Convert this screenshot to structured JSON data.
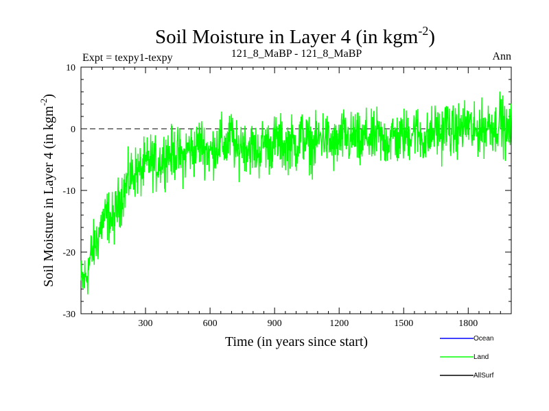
{
  "chart_data": {
    "type": "line",
    "title": "Soil Moisture in Layer 4 (in kgm",
    "title_sup": "-2",
    "title_close": ")",
    "subtitle_left": "Expt = texpy1-texpy",
    "subtitle_center": "121_8_MaBP - 121_8_MaBP",
    "subtitle_right": "Ann",
    "xlabel": "Time (in years since start)",
    "ylabel": "Soil Moisture in Layer 4 (in kgm",
    "ylabel_sup": "-2",
    "ylabel_close": ")",
    "xlim": [
      0,
      2000
    ],
    "ylim": [
      -30,
      10
    ],
    "x_ticks": [
      300,
      600,
      900,
      1200,
      1500,
      1800
    ],
    "x_tick_labels": [
      "300",
      "600",
      "900",
      "1200",
      "1500",
      "1800"
    ],
    "y_ticks": [
      10,
      0,
      -10,
      -20,
      -30
    ],
    "y_tick_labels": [
      "10",
      "0",
      "-10",
      "-20",
      "-30"
    ],
    "reference_line": {
      "y": 0,
      "style": "dashed"
    },
    "legend_position": "bottom-right",
    "series": [
      {
        "name": "Ocean",
        "color": "#0000ff",
        "values": []
      },
      {
        "name": "Land",
        "color": "#00ff00",
        "x": [
          0,
          25,
          50,
          75,
          100,
          125,
          150,
          175,
          200,
          225,
          250,
          275,
          300,
          325,
          350,
          375,
          400,
          425,
          450,
          475,
          500,
          525,
          550,
          575,
          600,
          625,
          650,
          675,
          700,
          725,
          750,
          775,
          800,
          825,
          850,
          875,
          900,
          925,
          950,
          975,
          1000,
          1025,
          1050,
          1075,
          1100,
          1125,
          1150,
          1175,
          1200,
          1225,
          1250,
          1275,
          1300,
          1325,
          1350,
          1375,
          1400,
          1425,
          1450,
          1475,
          1500,
          1525,
          1550,
          1575,
          1600,
          1625,
          1650,
          1675,
          1700,
          1725,
          1750,
          1775,
          1800,
          1825,
          1850,
          1875,
          1900,
          1925,
          1950,
          1975,
          2000
        ],
        "values": [
          -25,
          -24,
          -20,
          -18,
          -15,
          -14,
          -15,
          -12,
          -10,
          -8,
          -7,
          -7,
          -6,
          -5,
          -6,
          -5,
          -4,
          -4,
          -4,
          -5,
          -3,
          -4,
          -2,
          -3,
          -4,
          -3,
          -2,
          -3,
          -1,
          -4,
          -2,
          -3,
          -3,
          -4,
          -2,
          -3,
          -2,
          -2,
          -3,
          -2,
          -3,
          -1,
          -2,
          -3,
          -2,
          -1,
          -2,
          -3,
          -2,
          -1,
          -2,
          -1,
          -3,
          -1,
          -2,
          -1,
          -2,
          -2,
          -1,
          -2,
          -1,
          -1,
          0,
          -1,
          -2,
          -1,
          0,
          -1,
          1,
          -1,
          0,
          0,
          1,
          -1,
          0,
          0,
          1,
          0,
          2,
          -1,
          0
        ]
      },
      {
        "name": "AllSurf",
        "color": "#000000",
        "values": []
      }
    ]
  }
}
